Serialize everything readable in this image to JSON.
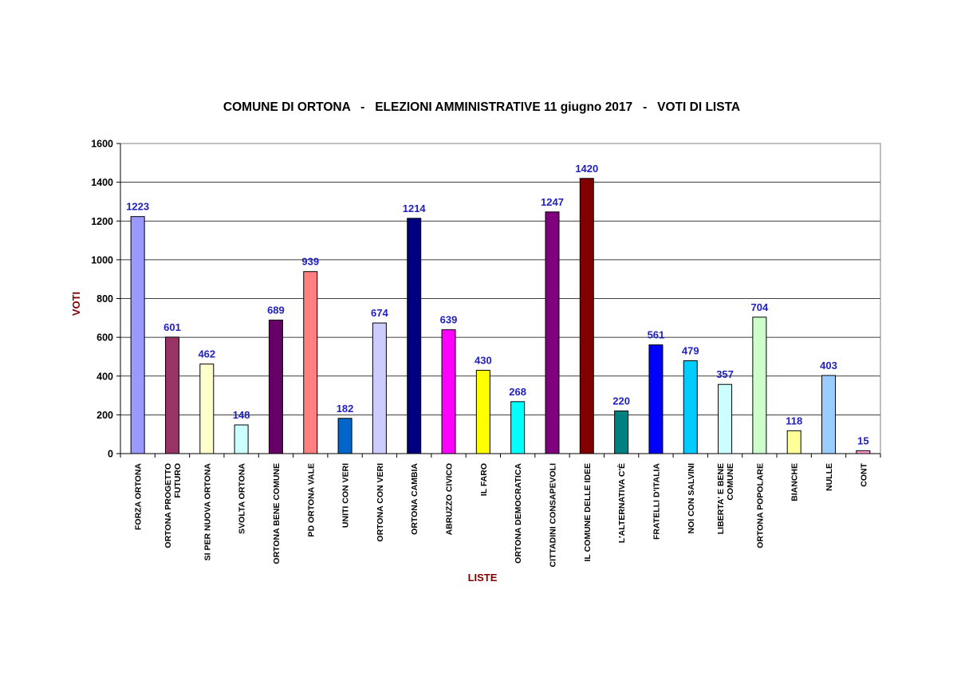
{
  "chart_data": {
    "type": "bar",
    "title": "COMUNE DI ORTONA   -   ELEZIONI AMMINISTRATIVE 11 giugno 2017   -   VOTI DI LISTA",
    "xlabel": "LISTE",
    "ylabel": "VOTI",
    "ylim": [
      0,
      1600
    ],
    "yticks": [
      0,
      200,
      400,
      600,
      800,
      1000,
      1200,
      1400,
      1600
    ],
    "grid": true,
    "legend": "none",
    "categories": [
      [
        "FORZA ORTONA"
      ],
      [
        "ORTONA PROGETTO",
        "FUTURO"
      ],
      [
        "SI PER NUOVA ORTONA"
      ],
      [
        "SVOLTA ORTONA"
      ],
      [
        "ORTONA BENE COMUNE"
      ],
      [
        "PD ORTONA VALE"
      ],
      [
        "UNITI CON VERI"
      ],
      [
        "ORTONA CON VERI"
      ],
      [
        "ORTONA CAMBIA"
      ],
      [
        "ABRUZZO CIVICO"
      ],
      [
        "IL FARO"
      ],
      [
        "ORTONA DEMOCRATICA"
      ],
      [
        "CITTADINI CONSAPEVOLI"
      ],
      [
        "IL COMUNE DELLE IDEE"
      ],
      [
        "L'ALTERNATIVA C'È"
      ],
      [
        "FRATELLI D'ITALIA"
      ],
      [
        "NOI CON SALVINI"
      ],
      [
        "LIBERTA' E BENE",
        "COMUNE"
      ],
      [
        "ORTONA POPOLARE"
      ],
      [
        "BIANCHE"
      ],
      [
        "NULLE"
      ],
      [
        "CONT"
      ]
    ],
    "values": [
      1223,
      601,
      462,
      148,
      689,
      939,
      182,
      674,
      1214,
      639,
      430,
      268,
      1247,
      1420,
      220,
      561,
      479,
      357,
      704,
      118,
      403,
      15
    ],
    "bar_colors": [
      "#9999ff",
      "#993366",
      "#ffffcc",
      "#ccffff",
      "#660066",
      "#ff8080",
      "#0066cc",
      "#ccccff",
      "#000080",
      "#ff00ff",
      "#ffff00",
      "#00ffff",
      "#800080",
      "#800000",
      "#008080",
      "#0000ff",
      "#00ccff",
      "#ccffff",
      "#ccffcc",
      "#ffff99",
      "#99ccff",
      "#ff99cc"
    ],
    "value_label_color": "#1f1fbf",
    "axis_title_color": "#800000"
  }
}
